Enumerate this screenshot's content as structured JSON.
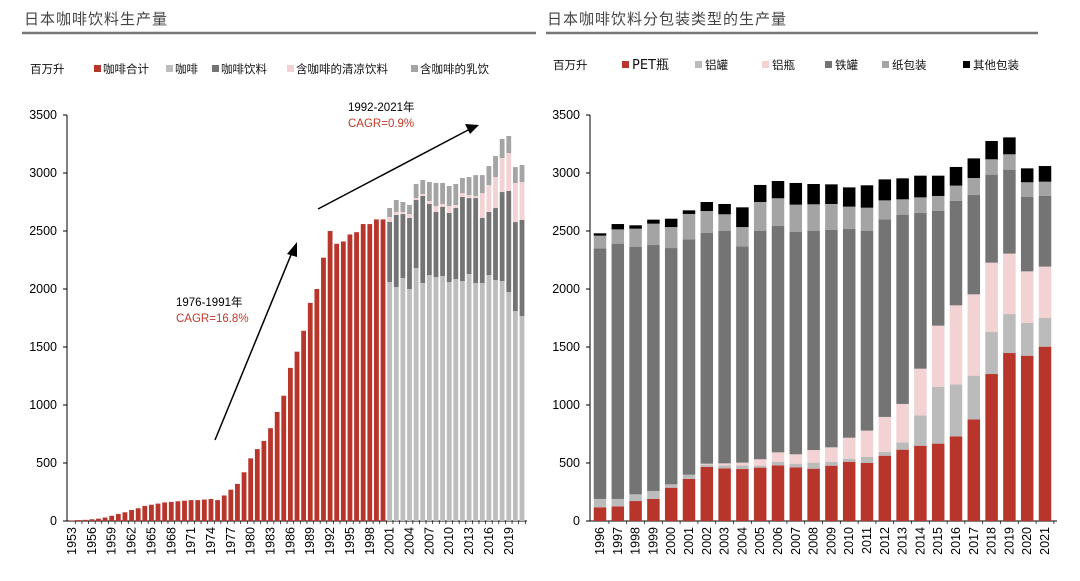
{
  "colors": {
    "red": "#b8352b",
    "coffee": "#bdbdbd",
    "coffee_drink": "#747474",
    "soft": "#f2d2d2",
    "milk": "#a4a4a4",
    "alcan": "#bbbbbb",
    "albottle": "#f2d2d2",
    "steel": "#747474",
    "paper": "#a4a4a4",
    "other": "#000000"
  },
  "chart_data": [
    {
      "type": "bar",
      "title": "日本咖啡饮料生产量",
      "ylabel": "百万升",
      "ylim": [
        0,
        3500
      ],
      "yticks": [
        0,
        500,
        1000,
        1500,
        2000,
        2500,
        3000,
        3500
      ],
      "xtick_labels": [
        "1953",
        "1956",
        "1959",
        "1962",
        "1965",
        "1968",
        "1971",
        "1974",
        "1977",
        "1980",
        "1983",
        "1986",
        "1989",
        "1992",
        "1995",
        "1998",
        "2001",
        "2004",
        "2007",
        "2010",
        "2013",
        "2016",
        "2019"
      ],
      "legend": [
        "咖啡合计",
        "咖啡",
        "咖啡饮料",
        "含咖啡的清凉饮料",
        "含咖啡的乳饮"
      ],
      "total_years": [
        1953,
        1954,
        1955,
        1956,
        1957,
        1958,
        1959,
        1960,
        1961,
        1962,
        1963,
        1964,
        1965,
        1966,
        1967,
        1968,
        1969,
        1970,
        1971,
        1972,
        1973,
        1974,
        1975,
        1976,
        1977,
        1978,
        1979,
        1980,
        1981,
        1982,
        1983,
        1984,
        1985,
        1986,
        1987,
        1988,
        1989,
        1990,
        1991,
        1992,
        1993,
        1994,
        1995,
        1996,
        1997,
        1998,
        1999,
        2000
      ],
      "total_values": [
        5,
        8,
        10,
        15,
        20,
        30,
        45,
        60,
        75,
        95,
        110,
        130,
        140,
        150,
        160,
        165,
        170,
        175,
        180,
        180,
        185,
        190,
        180,
        220,
        270,
        320,
        420,
        540,
        620,
        690,
        800,
        940,
        1080,
        1320,
        1460,
        1640,
        1880,
        2000,
        2270,
        2500,
        2390,
        2410,
        2470,
        2490,
        2560,
        2560,
        2600,
        2600
      ],
      "stack_years": [
        2001,
        2002,
        2003,
        2004,
        2005,
        2006,
        2007,
        2008,
        2009,
        2010,
        2011,
        2012,
        2013,
        2014,
        2015,
        2016,
        2017,
        2018,
        2019,
        2020,
        2021
      ],
      "series": [
        {
          "name": "咖啡",
          "values": [
            2060,
            2017,
            2095,
            2000,
            2181,
            2052,
            2120,
            2103,
            2112,
            2060,
            2086,
            2069,
            2129,
            2052,
            2052,
            2120,
            2077,
            2069,
            1974,
            1810,
            1767
          ]
        },
        {
          "name": "咖啡饮料",
          "values": [
            518,
            621,
            551,
            612,
            586,
            750,
            613,
            561,
            595,
            595,
            612,
            724,
            655,
            732,
            560,
            544,
            621,
            767,
            871,
            767,
            828
          ]
        },
        {
          "name": "含咖啡的清凉饮料",
          "values": [
            43,
            26,
            18,
            34,
            17,
            17,
            25,
            51,
            26,
            60,
            26,
            34,
            26,
            17,
            215,
            232,
            267,
            293,
            327,
            337,
            327
          ]
        },
        {
          "name": "含咖啡的乳饮",
          "values": [
            77,
            103,
            86,
            78,
            121,
            121,
            164,
            199,
            181,
            173,
            181,
            130,
            155,
            181,
            155,
            164,
            181,
            164,
            147,
            137,
            147
          ]
        }
      ],
      "annotations": [
        {
          "period": "1976-1991年",
          "cagr": "CAGR=16.8%"
        },
        {
          "period": "1992-2021年",
          "cagr": "CAGR=0.9%"
        }
      ]
    },
    {
      "type": "bar",
      "title": "日本咖啡饮料分包装类型的生产量",
      "ylabel": "百万升",
      "ylim": [
        0,
        3500
      ],
      "yticks": [
        0,
        500,
        1000,
        1500,
        2000,
        2500,
        3000,
        3500
      ],
      "categories": [
        "1996",
        "1997",
        "1998",
        "1999",
        "2000",
        "2001",
        "2002",
        "2003",
        "2004",
        "2005",
        "2006",
        "2007",
        "2008",
        "2009",
        "2010",
        "2011",
        "2012",
        "2013",
        "2014",
        "2015",
        "2016",
        "2017",
        "2018",
        "2019",
        "2020",
        "2021"
      ],
      "series": [
        {
          "name": "PET瓶",
          "values": [
            118,
            126,
            172,
            190,
            287,
            362,
            466,
            454,
            448,
            460,
            480,
            463,
            451,
            477,
            511,
            500,
            563,
            615,
            649,
            667,
            730,
            876,
            1267,
            1448,
            1425,
            1503
          ]
        },
        {
          "name": "铝罐",
          "values": [
            72,
            64,
            58,
            69,
            29,
            37,
            20,
            26,
            32,
            17,
            31,
            31,
            52,
            34,
            26,
            52,
            32,
            63,
            262,
            491,
            448,
            377,
            362,
            336,
            282,
            247
          ]
        },
        {
          "name": "铝瓶",
          "values": [
            0,
            0,
            0,
            0,
            0,
            0,
            8,
            17,
            23,
            55,
            81,
            81,
            109,
            124,
            181,
            227,
            302,
            331,
            402,
            526,
            681,
            701,
            598,
            521,
            445,
            443
          ]
        },
        {
          "name": "铁罐",
          "values": [
            2161,
            2201,
            2132,
            2120,
            2037,
            2029,
            1989,
            2003,
            1865,
            1971,
            1951,
            1919,
            1891,
            1874,
            1799,
            1724,
            1704,
            1629,
            1342,
            991,
            900,
            856,
            759,
            724,
            644,
            609
          ]
        },
        {
          "name": "纸包装",
          "values": [
            109,
            123,
            158,
            184,
            181,
            219,
            189,
            144,
            166,
            247,
            239,
            233,
            227,
            224,
            193,
            198,
            163,
            135,
            135,
            127,
            132,
            147,
            132,
            132,
            124,
            123
          ]
        },
        {
          "name": "其他包装",
          "values": [
            20,
            46,
            29,
            35,
            72,
            31,
            78,
            89,
            170,
            147,
            149,
            187,
            175,
            169,
            166,
            193,
            181,
            181,
            187,
            175,
            161,
            169,
            158,
            146,
            120,
            135
          ]
        }
      ]
    }
  ]
}
